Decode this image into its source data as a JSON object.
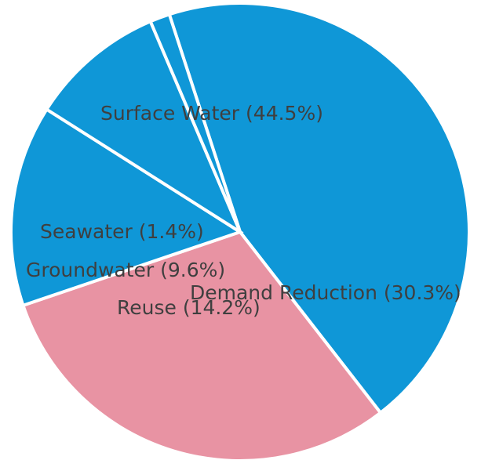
{
  "chart_data": {
    "type": "pie",
    "title": "",
    "slices": [
      {
        "label": "Surface Water (44.5%)",
        "value": 44.5,
        "color": "#0f97d7"
      },
      {
        "label": "Demand Reduction (30.3%)",
        "value": 30.3,
        "color": "#e893a3"
      },
      {
        "label": "Reuse (14.2%)",
        "value": 14.2,
        "color": "#0f97d7"
      },
      {
        "label": "Groundwater (9.6%)",
        "value": 9.6,
        "color": "#0f97d7"
      },
      {
        "label": "Seawater (1.4%)",
        "value": 1.4,
        "color": "#0f97d7"
      }
    ]
  }
}
